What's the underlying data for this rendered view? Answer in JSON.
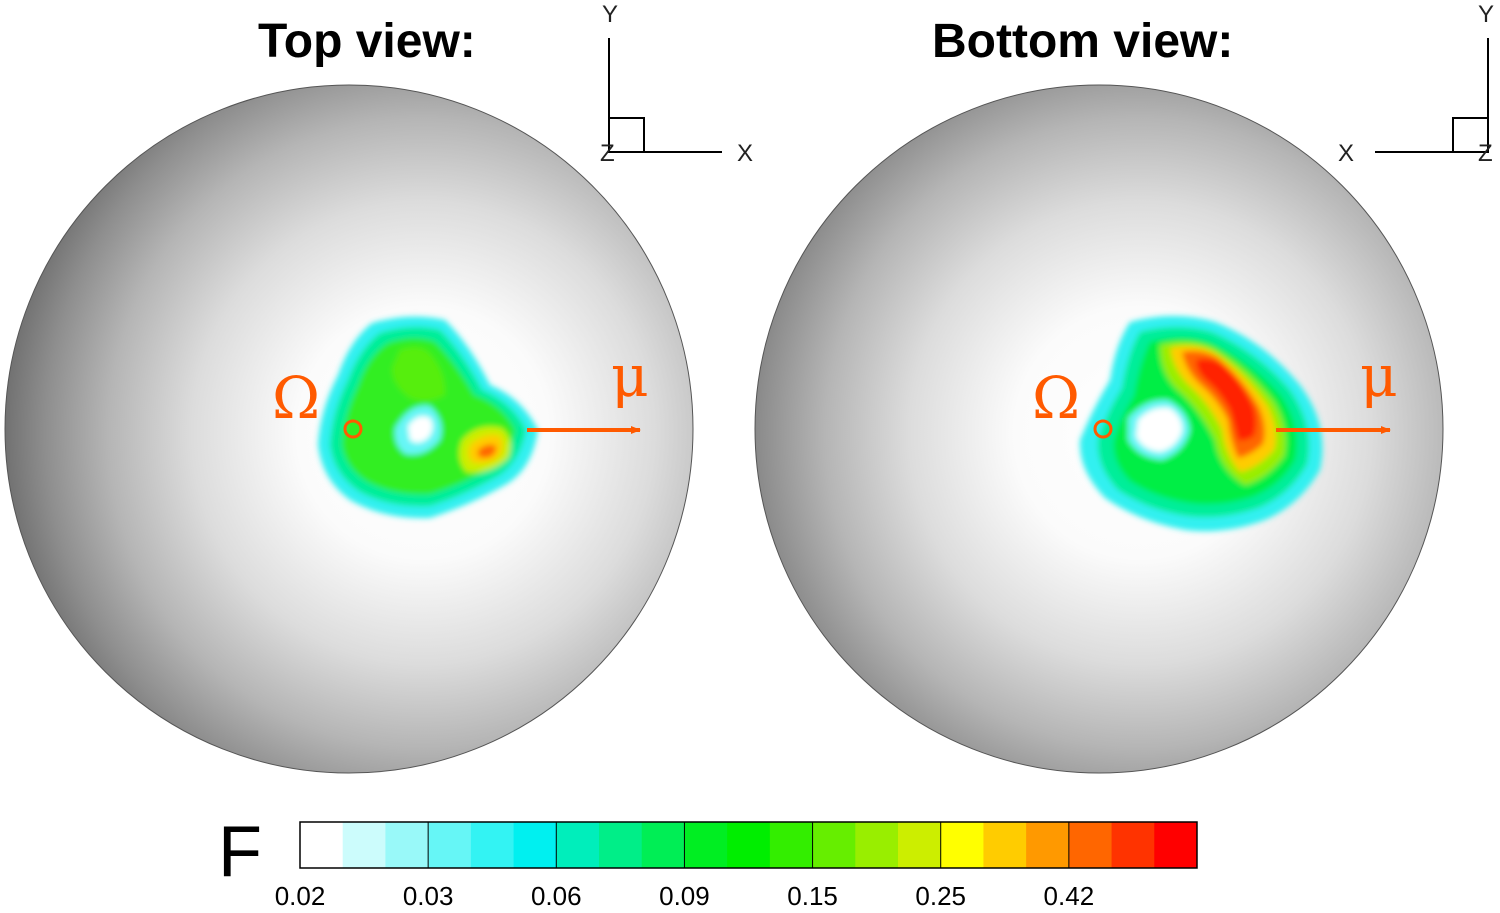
{
  "panels": [
    {
      "title": "Top view:",
      "axes": {
        "x": "X",
        "y": "Y",
        "z": "Z"
      }
    },
    {
      "title": "Bottom view:",
      "axes": {
        "x": "X",
        "y": "Y",
        "z": "Z"
      }
    }
  ],
  "annotations": {
    "omega": "Ω",
    "mu": "μ",
    "accent_color": "#ff5a00"
  },
  "colorbar": {
    "variable": "F",
    "tick_labels": [
      "0.02",
      "0.03",
      "0.06",
      "0.09",
      "0.15",
      "0.25",
      "0.42"
    ],
    "colors": [
      "#ffffff",
      "#ccfcfc",
      "#99f9f9",
      "#66f6f6",
      "#33f3f3",
      "#00f0f0",
      "#00eebb",
      "#00ee88",
      "#00ee55",
      "#00ee22",
      "#00ee00",
      "#33ee00",
      "#66ee00",
      "#99ee00",
      "#ccee00",
      "#ffff00",
      "#ffcc00",
      "#ff9900",
      "#ff6600",
      "#ff3300",
      "#ff0000"
    ]
  }
}
